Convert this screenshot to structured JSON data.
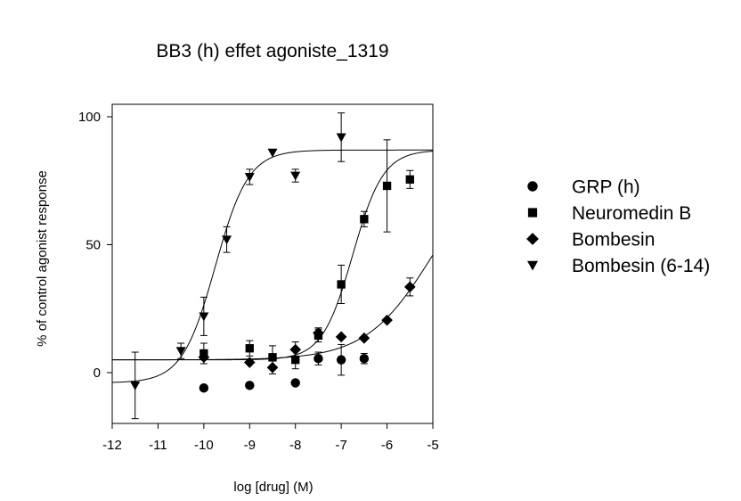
{
  "chart_data": {
    "type": "scatter",
    "title": "BB3 (h) effet agoniste_1319",
    "xlabel": "log [drug] (M)",
    "ylabel": "% of control agonist response",
    "xlim": [
      -12,
      -5
    ],
    "ylim": [
      -20,
      110
    ],
    "xticks": [
      -12,
      -11,
      -10,
      -9,
      -8,
      -7,
      -6,
      -5
    ],
    "yticks": [
      0,
      50,
      100
    ],
    "grid": false,
    "legend_position": "right",
    "series": [
      {
        "name": "GRP (h)",
        "marker": "circle",
        "points": [
          {
            "x": -10.0,
            "y": -6.0,
            "err": 0
          },
          {
            "x": -9.0,
            "y": -5.0,
            "err": 0
          },
          {
            "x": -8.0,
            "y": -4.0,
            "err": 0
          },
          {
            "x": -7.5,
            "y": 5.5,
            "err": 2.5
          },
          {
            "x": -7.0,
            "y": 5.0,
            "err": 6.0
          },
          {
            "x": -6.5,
            "y": 5.5,
            "err": 2.0
          }
        ],
        "fit": null
      },
      {
        "name": "Neuromedin B",
        "marker": "square",
        "points": [
          {
            "x": -10.0,
            "y": 7.5,
            "err": 4.0
          },
          {
            "x": -9.0,
            "y": 9.5,
            "err": 3.0
          },
          {
            "x": -8.5,
            "y": 6.0,
            "err": 4.5
          },
          {
            "x": -8.0,
            "y": 5.0,
            "err": 3.5
          },
          {
            "x": -7.5,
            "y": 14.5,
            "err": 2.5
          },
          {
            "x": -7.0,
            "y": 34.5,
            "err": 7.5
          },
          {
            "x": -6.5,
            "y": 60.0,
            "err": 3.0
          },
          {
            "x": -6.0,
            "y": 73.0,
            "err": 18.0
          },
          {
            "x": -5.5,
            "y": 75.5,
            "err": 3.5
          }
        ],
        "fit": {
          "bottom": 5,
          "top": 87,
          "logec50": -6.75,
          "hill": 1.3
        }
      },
      {
        "name": "Bombesin",
        "marker": "diamond",
        "points": [
          {
            "x": -10.0,
            "y": 6.0,
            "err": 0
          },
          {
            "x": -9.0,
            "y": 4.0,
            "err": 0
          },
          {
            "x": -8.5,
            "y": 2.0,
            "err": 2.5
          },
          {
            "x": -8.0,
            "y": 9.0,
            "err": 3.0
          },
          {
            "x": -7.5,
            "y": 15.5,
            "err": 2.0
          },
          {
            "x": -7.0,
            "y": 14.0,
            "err": 0
          },
          {
            "x": -6.5,
            "y": 13.5,
            "err": 0
          },
          {
            "x": -6.0,
            "y": 20.5,
            "err": 0
          },
          {
            "x": -5.5,
            "y": 33.5,
            "err": 3.5
          }
        ],
        "fit": {
          "bottom": 5,
          "top": 87,
          "logec50": -5.0,
          "hill": 0.6
        }
      },
      {
        "name": "Bombesin (6-14)",
        "marker": "triangle-down",
        "points": [
          {
            "x": -11.5,
            "y": -5.0,
            "err": 13.0
          },
          {
            "x": -10.5,
            "y": 8.5,
            "err": 3.0
          },
          {
            "x": -10.0,
            "y": 22.0,
            "err": 7.5
          },
          {
            "x": -9.5,
            "y": 52.0,
            "err": 5.0
          },
          {
            "x": -9.0,
            "y": 76.5,
            "err": 3.0
          },
          {
            "x": -8.5,
            "y": 86.0,
            "err": 0
          },
          {
            "x": -8.0,
            "y": 77.0,
            "err": 2.5
          },
          {
            "x": -7.0,
            "y": 92.0,
            "err": 9.5
          }
        ],
        "fit": {
          "bottom": -4,
          "top": 87,
          "logec50": -9.75,
          "hill": 1.2
        }
      }
    ]
  }
}
